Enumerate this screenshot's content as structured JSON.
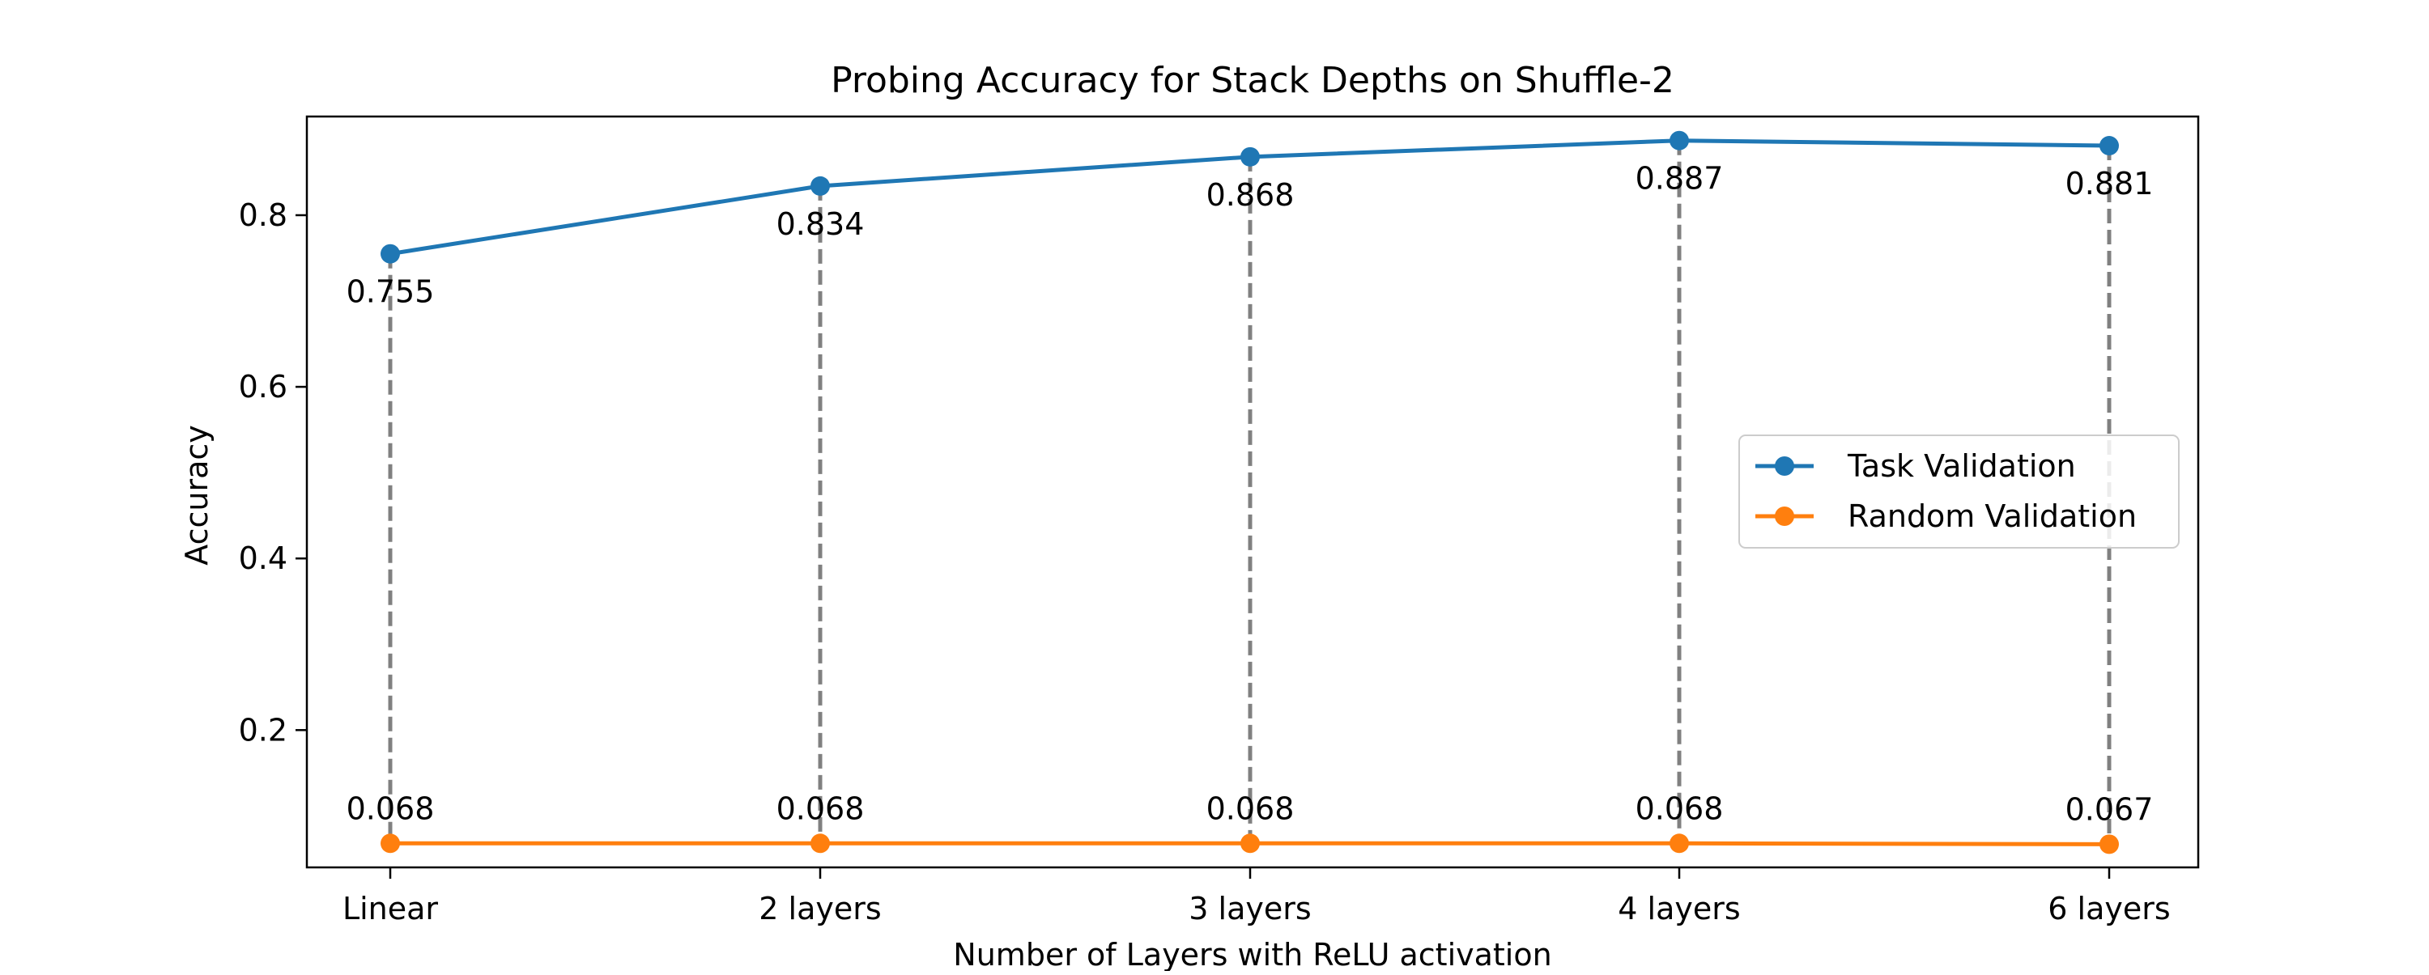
{
  "chart_data": {
    "type": "line",
    "title": "Probing Accuracy for Stack Depths on Shuffle-2",
    "xlabel": "Number of Layers with ReLU activation",
    "ylabel": "Accuracy",
    "categories": [
      "Linear",
      "2 layers",
      "3 layers",
      "4 layers",
      "6 layers"
    ],
    "ylim": [
      0.04,
      0.915
    ],
    "yticks": [
      0.2,
      0.4,
      0.6,
      0.8
    ],
    "ytick_labels": [
      "0.2",
      "0.4",
      "0.6",
      "0.8"
    ],
    "grid": false,
    "legend_position": "center-right",
    "connector_lines": "dashed vertical lines joining the two series at each category",
    "series": [
      {
        "name": "Task Validation",
        "color": "#1f77b4",
        "values": [
          0.755,
          0.834,
          0.868,
          0.887,
          0.881
        ],
        "labels": [
          "0.755",
          "0.834",
          "0.868",
          "0.887",
          "0.881"
        ]
      },
      {
        "name": "Random Validation",
        "color": "#ff7f0e",
        "values": [
          0.068,
          0.068,
          0.068,
          0.068,
          0.067
        ],
        "labels": [
          "0.068",
          "0.068",
          "0.068",
          "0.068",
          "0.067"
        ]
      }
    ],
    "connector_color": "#808080"
  }
}
